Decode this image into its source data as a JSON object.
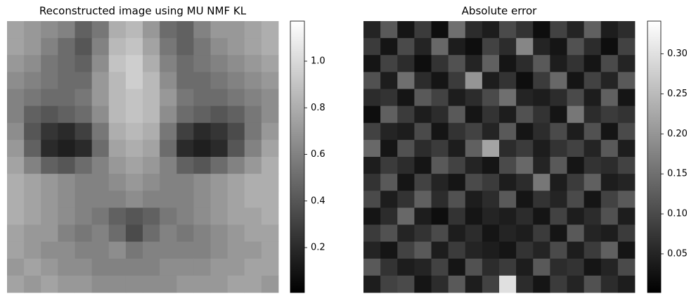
{
  "chart_data": [
    {
      "type": "heatmap",
      "title": "Reconstructed image using MU NMF KL",
      "colormap": "gray",
      "zlim": [
        0.007,
        1.172
      ],
      "zticks": [
        0.2,
        0.4,
        0.6,
        0.8,
        {
          "value": 1,
          "label": "1.0"
        }
      ],
      "z": [
        [
          0.75,
          0.7,
          0.65,
          0.6,
          0.45,
          0.55,
          0.8,
          0.85,
          0.7,
          0.5,
          0.45,
          0.6,
          0.7,
          0.7,
          0.75,
          0.8
        ],
        [
          0.75,
          0.7,
          0.6,
          0.5,
          0.4,
          0.6,
          0.85,
          0.9,
          0.75,
          0.55,
          0.45,
          0.55,
          0.65,
          0.7,
          0.75,
          0.8
        ],
        [
          0.7,
          0.65,
          0.55,
          0.5,
          0.45,
          0.65,
          0.9,
          0.95,
          0.8,
          0.6,
          0.5,
          0.55,
          0.6,
          0.65,
          0.7,
          0.75
        ],
        [
          0.65,
          0.6,
          0.55,
          0.5,
          0.5,
          0.7,
          0.85,
          0.95,
          0.85,
          0.65,
          0.5,
          0.5,
          0.55,
          0.6,
          0.65,
          0.7
        ],
        [
          0.6,
          0.55,
          0.5,
          0.5,
          0.55,
          0.7,
          0.85,
          0.9,
          0.85,
          0.7,
          0.55,
          0.5,
          0.5,
          0.55,
          0.6,
          0.65
        ],
        [
          0.6,
          0.45,
          0.4,
          0.45,
          0.5,
          0.65,
          0.85,
          0.9,
          0.85,
          0.65,
          0.5,
          0.45,
          0.4,
          0.45,
          0.55,
          0.65
        ],
        [
          0.65,
          0.4,
          0.25,
          0.2,
          0.3,
          0.55,
          0.8,
          0.85,
          0.8,
          0.55,
          0.3,
          0.2,
          0.25,
          0.35,
          0.55,
          0.7
        ],
        [
          0.7,
          0.45,
          0.2,
          0.15,
          0.2,
          0.5,
          0.75,
          0.8,
          0.75,
          0.5,
          0.2,
          0.15,
          0.2,
          0.4,
          0.6,
          0.75
        ],
        [
          0.75,
          0.6,
          0.45,
          0.4,
          0.5,
          0.6,
          0.7,
          0.75,
          0.7,
          0.6,
          0.45,
          0.4,
          0.5,
          0.6,
          0.7,
          0.8
        ],
        [
          0.8,
          0.75,
          0.7,
          0.65,
          0.6,
          0.6,
          0.65,
          0.7,
          0.65,
          0.6,
          0.6,
          0.65,
          0.7,
          0.75,
          0.8,
          0.8
        ],
        [
          0.8,
          0.75,
          0.7,
          0.65,
          0.6,
          0.6,
          0.6,
          0.65,
          0.6,
          0.6,
          0.6,
          0.65,
          0.7,
          0.75,
          0.8,
          0.8
        ],
        [
          0.8,
          0.75,
          0.7,
          0.65,
          0.6,
          0.55,
          0.45,
          0.4,
          0.45,
          0.55,
          0.6,
          0.65,
          0.7,
          0.75,
          0.75,
          0.8
        ],
        [
          0.75,
          0.7,
          0.7,
          0.6,
          0.55,
          0.6,
          0.5,
          0.35,
          0.5,
          0.6,
          0.55,
          0.6,
          0.65,
          0.7,
          0.75,
          0.75
        ],
        [
          0.75,
          0.7,
          0.65,
          0.65,
          0.6,
          0.6,
          0.65,
          0.55,
          0.6,
          0.6,
          0.6,
          0.6,
          0.65,
          0.7,
          0.7,
          0.75
        ],
        [
          0.7,
          0.75,
          0.7,
          0.65,
          0.65,
          0.6,
          0.6,
          0.6,
          0.6,
          0.65,
          0.65,
          0.65,
          0.7,
          0.7,
          0.75,
          0.75
        ],
        [
          0.75,
          0.7,
          0.75,
          0.7,
          0.7,
          0.65,
          0.65,
          0.65,
          0.65,
          0.65,
          0.7,
          0.7,
          0.7,
          0.75,
          0.75,
          0.7
        ]
      ]
    },
    {
      "type": "heatmap",
      "title": "Absolute error",
      "colormap": "gray",
      "zlim": [
        0.0016,
        0.341
      ],
      "zticks": [
        0.05,
        {
          "value": 0.1,
          "label": "0.10"
        },
        0.15,
        {
          "value": 0.2,
          "label": "0.20"
        },
        0.25,
        {
          "value": 0.3,
          "label": "0.30"
        }
      ],
      "z": [
        [
          0.05,
          0.12,
          0.03,
          0.08,
          0.02,
          0.15,
          0.06,
          0.04,
          0.1,
          0.07,
          0.02,
          0.09,
          0.05,
          0.13,
          0.04,
          0.06
        ],
        [
          0.08,
          0.03,
          0.1,
          0.05,
          0.14,
          0.04,
          0.02,
          0.09,
          0.06,
          0.18,
          0.05,
          0.03,
          0.11,
          0.06,
          0.02,
          0.09
        ],
        [
          0.03,
          0.09,
          0.06,
          0.02,
          0.07,
          0.11,
          0.05,
          0.13,
          0.03,
          0.06,
          0.12,
          0.04,
          0.07,
          0.03,
          0.1,
          0.05
        ],
        [
          0.11,
          0.04,
          0.15,
          0.06,
          0.03,
          0.08,
          0.2,
          0.04,
          0.07,
          0.02,
          0.08,
          0.14,
          0.03,
          0.09,
          0.05,
          0.12
        ],
        [
          0.06,
          0.07,
          0.03,
          0.12,
          0.09,
          0.04,
          0.06,
          0.1,
          0.15,
          0.05,
          0.04,
          0.06,
          0.1,
          0.04,
          0.13,
          0.03
        ],
        [
          0.02,
          0.13,
          0.08,
          0.04,
          0.06,
          0.12,
          0.03,
          0.07,
          0.04,
          0.11,
          0.07,
          0.03,
          0.16,
          0.06,
          0.08,
          0.07
        ],
        [
          0.09,
          0.05,
          0.04,
          0.1,
          0.03,
          0.07,
          0.09,
          0.05,
          0.12,
          0.03,
          0.06,
          0.1,
          0.04,
          0.11,
          0.03,
          0.1
        ],
        [
          0.14,
          0.03,
          0.11,
          0.06,
          0.08,
          0.04,
          0.13,
          0.22,
          0.06,
          0.08,
          0.04,
          0.07,
          0.09,
          0.05,
          0.12,
          0.04
        ],
        [
          0.04,
          0.08,
          0.06,
          0.03,
          0.12,
          0.09,
          0.05,
          0.03,
          0.1,
          0.14,
          0.05,
          0.12,
          0.03,
          0.07,
          0.06,
          0.09
        ],
        [
          0.07,
          0.12,
          0.03,
          0.09,
          0.05,
          0.03,
          0.1,
          0.08,
          0.04,
          0.06,
          0.16,
          0.04,
          0.08,
          0.13,
          0.04,
          0.05
        ],
        [
          0.1,
          0.04,
          0.07,
          0.13,
          0.06,
          0.11,
          0.04,
          0.06,
          0.12,
          0.03,
          0.07,
          0.05,
          0.1,
          0.03,
          0.09,
          0.12
        ],
        [
          0.03,
          0.06,
          0.14,
          0.04,
          0.02,
          0.07,
          0.03,
          0.05,
          0.04,
          0.06,
          0.03,
          0.09,
          0.04,
          0.06,
          0.11,
          0.04
        ],
        [
          0.08,
          0.11,
          0.05,
          0.07,
          0.1,
          0.04,
          0.06,
          0.03,
          0.05,
          0.04,
          0.08,
          0.03,
          0.12,
          0.05,
          0.04,
          0.08
        ],
        [
          0.05,
          0.03,
          0.09,
          0.12,
          0.04,
          0.08,
          0.05,
          0.04,
          0.03,
          0.07,
          0.05,
          0.1,
          0.04,
          0.08,
          0.13,
          0.03
        ],
        [
          0.12,
          0.07,
          0.04,
          0.05,
          0.09,
          0.03,
          0.11,
          0.06,
          0.08,
          0.04,
          0.12,
          0.06,
          0.07,
          0.03,
          0.05,
          0.1
        ],
        [
          0.04,
          0.09,
          0.1,
          0.03,
          0.06,
          0.12,
          0.04,
          0.09,
          0.3,
          0.06,
          0.03,
          0.08,
          0.05,
          0.11,
          0.06,
          0.04
        ]
      ]
    }
  ]
}
